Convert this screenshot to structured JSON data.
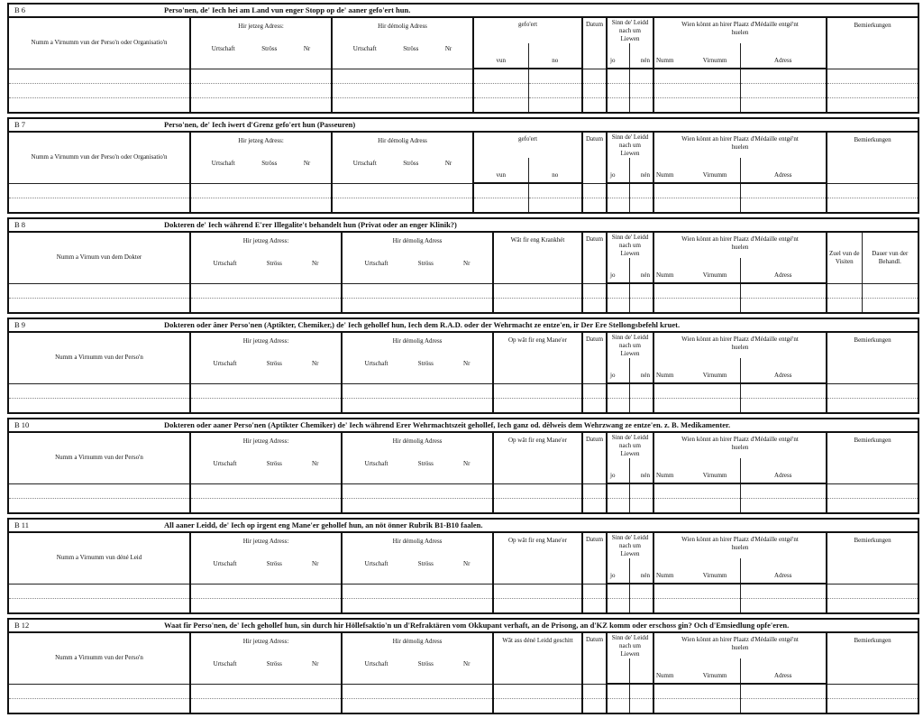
{
  "common": {
    "jetzeg": {
      "title": "Hir jetzeg Adress:",
      "sub": [
        "Urtschaft",
        "Ströss",
        "Nr"
      ]
    },
    "demolig": {
      "title": "Hir démolig Adress",
      "sub": [
        "Urtschaft",
        "Ströss",
        "Nr"
      ]
    },
    "datum": "Datum",
    "sinn": {
      "title": "Sinn de' Leidd nach um Liewen",
      "jo": "jo",
      "nen": "nén"
    },
    "wien": {
      "title": "Wien könnt an hirer Plaatz d'Médaille entgé'nt huelen",
      "numm": "Numm",
      "virnumm": "Virnumm",
      "adress": "Adress"
    },
    "bem": "Bemierkungen"
  },
  "sections": [
    {
      "id": "B 6",
      "title": "Perso'nen, de' Iech hei am Land vun enger Stopp op de' aaner gefo'ert hun.",
      "kind": "gefoert",
      "col1": "Numm a Virnumm vun der Perso'n oder Organisatio'n",
      "mid": {
        "title": "gefo'ert",
        "vun": "vun",
        "no": "no"
      }
    },
    {
      "id": "B 7",
      "title": "Perso'nen, de' Iech iwert d'Grenz gefo'ert hun (Passeuren)",
      "kind": "gefoert",
      "col1": "Numm a Virnumm vun der Perso'n oder Organisatio'n",
      "mid": {
        "title": "gefo'ert",
        "vun": "vun",
        "no": "no"
      }
    },
    {
      "id": "B 8",
      "title": "Dokteren de' Iech während E'rer Illegalite't behandelt hun (Privat oder an enger Klinik?)",
      "kind": "dokter",
      "col1": "Numm a Virnum vun dem Dokter",
      "mid": {
        "title": "Wât fir eng Krankhét"
      },
      "zuel": "Zuel vun de Visiten",
      "dauer": "Dauer vun der Behandl."
    },
    {
      "id": "B 9",
      "title": "Dokteren oder âner Perso'nen (Aptikter, Chemiker,) de' Iech gehollef hun, Iech dem R.A.D. oder der Wehrmacht ze entze'en, ir Der Ere Stellongsbefehl kruet.",
      "kind": "std",
      "col1": "Numm a Virnumm vun der Perso'n",
      "mid": {
        "title": "Op wât fir eng Mane'er"
      }
    },
    {
      "id": "B 10",
      "title": "Dokteren oder aaner Perso'nen (Aptikter Chemiker) de' Iech während Erer Wehrmachtszeit gehollef, Iech ganz od. dèlweis dem Wehrzwang ze entze'en. z. B. Medikamenter.",
      "kind": "std",
      "col1": "Numm a Virnumm vun der Perso'n",
      "mid": {
        "title": "Op wât fir eng Mane'er"
      }
    },
    {
      "id": "B 11",
      "title": "All aaner Leidd, de' Iech op irgent eng Mane'er gehollef hun, an nöt önner Rubrik B1-B10 faalen.",
      "kind": "std",
      "col1": "Numm a Virnumm vun déné Leid",
      "mid": {
        "title": "Op wât fir eng Mane'er"
      }
    },
    {
      "id": "B 12",
      "title": "Waat fir Perso'nen, de' Iech gehollef hun, sin durch hir Höllefsaktio'n un d'Refraktären vom Okkupant verhaft, an de Prisong, an d'KZ komm oder erschoss gin? Och d'Emsiedlung opfe'eren.",
      "kind": "std",
      "no_jo_nen": true,
      "col1": "Numm a Virnumm vun der Perso'n",
      "mid": {
        "title": "Wât ass déné Leidd geschitt"
      }
    }
  ]
}
